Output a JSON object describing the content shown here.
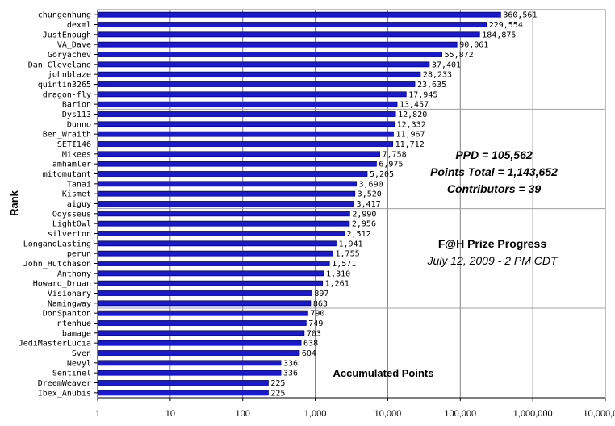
{
  "chart_data": {
    "type": "bar",
    "orientation": "horizontal",
    "scale": "log",
    "categories": [
      "chungenhung",
      "dexml",
      "JustEnough",
      "VA_Dave",
      "Goryachev",
      "Dan_Cleveland",
      "johnblaze",
      "quintin3265",
      "dragon-fly",
      "Barion",
      "Dys113",
      "Dunno",
      "Ben_Wraith",
      "SETI146",
      "Mikees",
      "amhamler",
      "mitomutant",
      "Tanai",
      "Kismet",
      "aiguy",
      "Odysseus",
      "LightOwl",
      "silverton",
      "LongandLasting",
      "perun",
      "John_Hutchason",
      "Anthony",
      "Howard_Druan",
      "Visionary",
      "Namingway",
      "DonSpanton",
      "ntenhue",
      "bamage",
      "JediMasterLucia",
      "Sven",
      "Nevyl",
      "Sentinel",
      "DreemWeaver",
      "Ibex_Anubis"
    ],
    "values": [
      360561,
      229554,
      184875,
      90061,
      55872,
      37401,
      28233,
      23635,
      17945,
      13457,
      12820,
      12332,
      11967,
      11712,
      7758,
      6975,
      5205,
      3690,
      3520,
      3417,
      2990,
      2956,
      2512,
      1941,
      1755,
      1571,
      1310,
      1261,
      897,
      863,
      790,
      749,
      703,
      638,
      604,
      336,
      336,
      225,
      225
    ],
    "value_labels": [
      "360,561",
      "229,554",
      "184,875",
      "90,061",
      "55,872",
      "37,401",
      "28,233",
      "23,635",
      "17,945",
      "13,457",
      "12,820",
      "12,332",
      "11,967",
      "11,712",
      "7,758",
      "6,975",
      "5,205",
      "3,690",
      "3,520",
      "3,417",
      "2,990",
      "2,956",
      "2,512",
      "1,941",
      "1,755",
      "1,571",
      "1,310",
      "1,261",
      "897",
      "863",
      "790",
      "749",
      "703",
      "638",
      "604",
      "336",
      "336",
      "225",
      "225"
    ],
    "xlim": [
      1,
      10000000
    ],
    "xticks": [
      1,
      10,
      100,
      1000,
      10000,
      100000,
      1000000,
      10000000
    ],
    "xtick_labels": [
      "1",
      "10",
      "100",
      "1,000",
      "10,000",
      "100,000",
      "1,000,000",
      "10,000,000"
    ],
    "xlabel": "Accumulated Points",
    "ylabel": "Rank",
    "title": "F@H Prize Progress",
    "subtitle": "July 12, 2009 - 2 PM CDT",
    "bar_color": "#1a1acc",
    "bar_edge_color": "#000080",
    "grid": "vertical gridlines at each decade"
  },
  "stats": {
    "ppd": "PPD = 105,562",
    "points_total": "Points Total = 1,143,652",
    "contributors": "Contributors = 39"
  }
}
